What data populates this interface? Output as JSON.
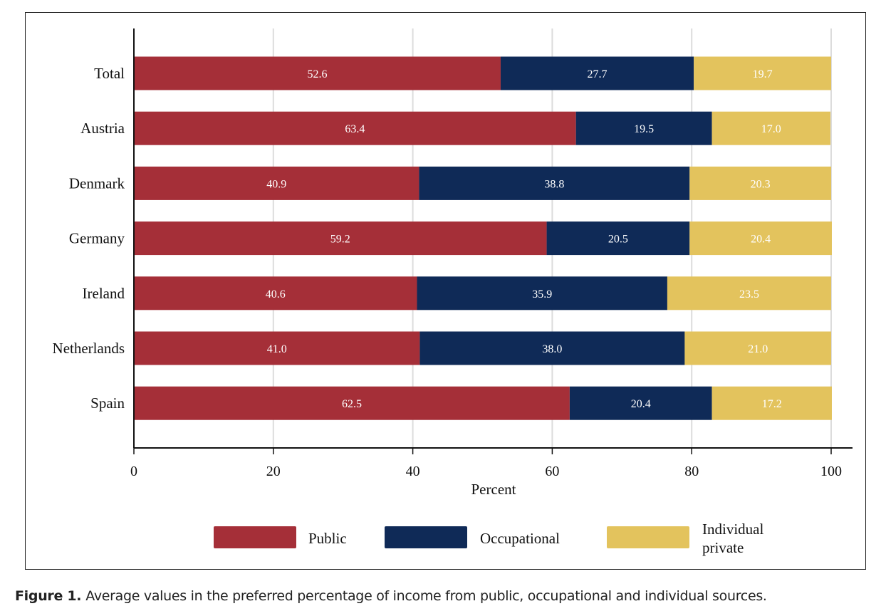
{
  "figure": {
    "caption_label": "Figure 1.",
    "caption_text": "Average values in the preferred percentage of income from public, occupational and individual sources."
  },
  "chart_data": {
    "type": "bar",
    "orientation": "horizontal",
    "stacked": true,
    "title": "",
    "xlabel": "Percent",
    "ylabel": "",
    "xlim": [
      0,
      100
    ],
    "xticks": [
      0,
      20,
      40,
      60,
      80,
      100
    ],
    "grid": true,
    "legend_position": "bottom",
    "categories": [
      "Total",
      "Austria",
      "Denmark",
      "Germany",
      "Ireland",
      "Netherlands",
      "Spain"
    ],
    "series": [
      {
        "name": "Public",
        "color": "#a52f38",
        "values": [
          52.6,
          63.4,
          40.9,
          59.2,
          40.6,
          41.0,
          62.5
        ]
      },
      {
        "name": "Occupational",
        "color": "#0f2a57",
        "values": [
          27.7,
          19.5,
          38.8,
          20.5,
          35.9,
          38.0,
          20.4
        ]
      },
      {
        "name": "Individual private",
        "color": "#e3c35d",
        "values": [
          19.7,
          17.0,
          20.3,
          20.4,
          23.5,
          21.0,
          17.2
        ]
      }
    ],
    "legend": [
      {
        "label_lines": [
          "Public"
        ]
      },
      {
        "label_lines": [
          "Occupational"
        ]
      },
      {
        "label_lines": [
          "Individual",
          "private"
        ]
      }
    ]
  }
}
